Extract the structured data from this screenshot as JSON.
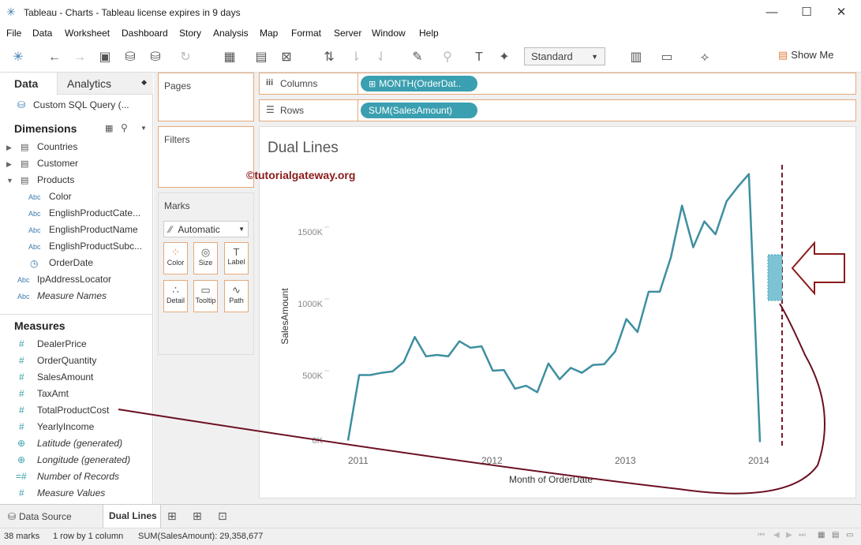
{
  "window": {
    "title": "Tableau - Charts - Tableau license expires in 9 days"
  },
  "menu": [
    "File",
    "Data",
    "Worksheet",
    "Dashboard",
    "Story",
    "Analysis",
    "Map",
    "Format",
    "Server",
    "Window",
    "Help"
  ],
  "toolbar": {
    "mark_standard": "Standard",
    "show_me": "Show Me"
  },
  "left": {
    "tab_data": "Data",
    "tab_analytics": "Analytics",
    "datasource": "Custom SQL Query (...",
    "dimensions_title": "Dimensions",
    "dimensions": [
      "Countries",
      "Customer",
      "Products",
      "Color",
      "EnglishProductCate...",
      "EnglishProductName",
      "EnglishProductSubc...",
      "OrderDate",
      "IpAddressLocator",
      "Measure Names"
    ],
    "measures_title": "Measures",
    "measures": [
      "DealerPrice",
      "OrderQuantity",
      "SalesAmount",
      "TaxAmt",
      "TotalProductCost",
      "YearlyIncome",
      "Latitude (generated)",
      "Longitude (generated)",
      "Number of Records",
      "Measure Values"
    ]
  },
  "cards": {
    "pages": "Pages",
    "filters": "Filters",
    "marks": "Marks",
    "marks_type": "Automatic",
    "mark_buttons": [
      "Color",
      "Size",
      "Label",
      "Detail",
      "Tooltip",
      "Path"
    ]
  },
  "shelves": {
    "columns_label": "Columns",
    "rows_label": "Rows",
    "columns_pill": "MONTH(OrderDat..",
    "rows_pill": "SUM(SalesAmount)"
  },
  "chart_data": {
    "type": "line",
    "title": "Dual Lines",
    "watermark": "©tutorialgateway.org",
    "xlabel": "Month of OrderDate",
    "ylabel": "SalesAmount",
    "x_ticks": [
      "2011",
      "2012",
      "2013",
      "2014"
    ],
    "y_ticks": [
      "0K",
      "500K",
      "1000K",
      "1500K"
    ],
    "ylim": [
      0,
      2000000
    ],
    "series": [
      {
        "name": "SUM(SalesAmount)",
        "color": "#3e8fa0",
        "values": [
          14000,
          470000,
          470000,
          485000,
          495000,
          560000,
          735000,
          600000,
          610000,
          600000,
          705000,
          660000,
          670000,
          500000,
          505000,
          375000,
          395000,
          350000,
          550000,
          440000,
          520000,
          485000,
          540000,
          545000,
          635000,
          860000,
          770000,
          1050000,
          1050000,
          1290000,
          1650000,
          1360000,
          1540000,
          1450000,
          1680000,
          1780000,
          1870000,
          3000
        ]
      }
    ]
  },
  "bottom": {
    "datasource_tab": "Data Source",
    "sheet_tab": "Dual Lines"
  },
  "status": {
    "marks": "38 marks",
    "rows": "1 row by 1 column",
    "sum": "SUM(SalesAmount): 29,358,677"
  }
}
